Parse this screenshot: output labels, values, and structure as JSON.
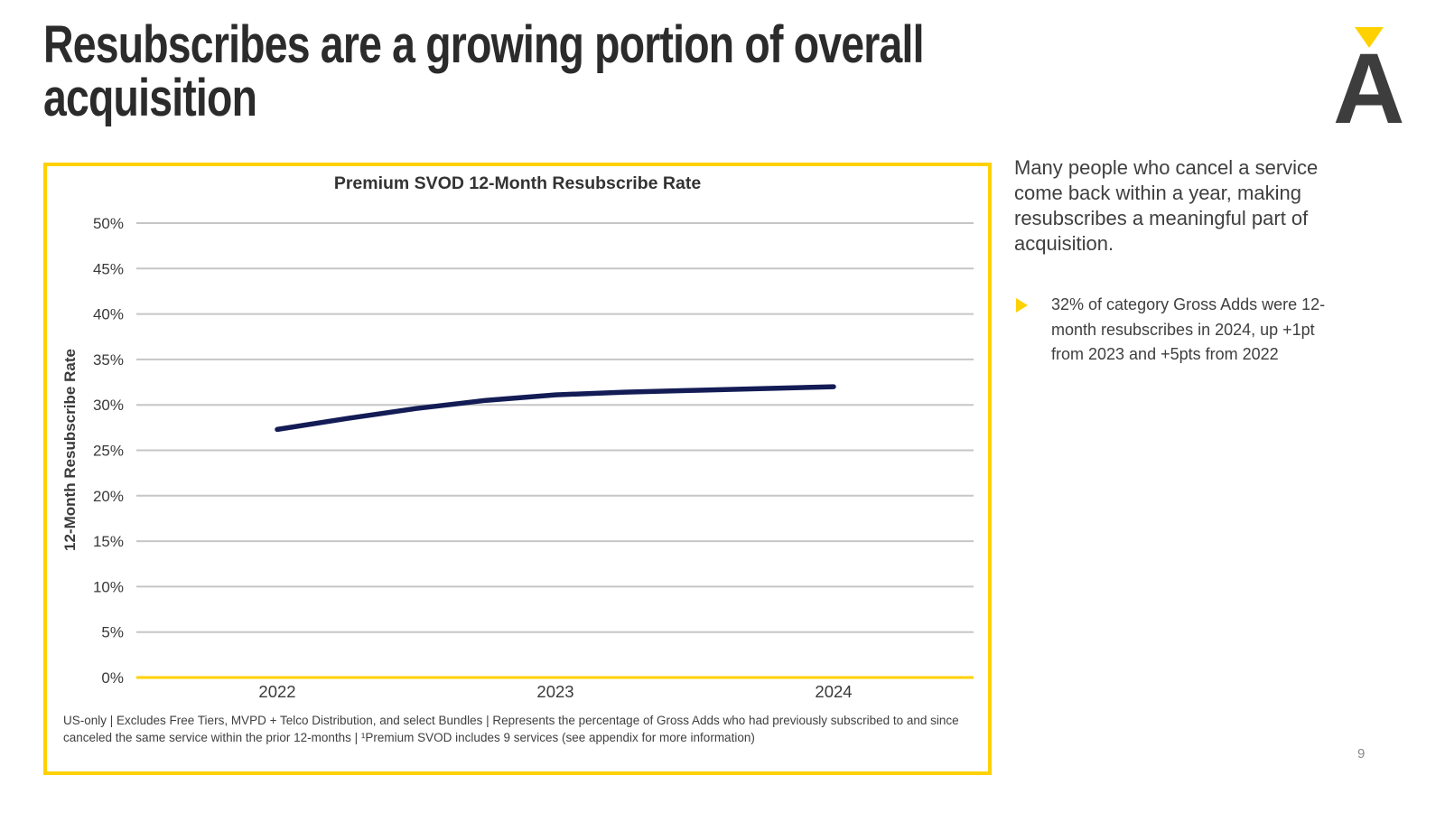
{
  "slide": {
    "title_lines": [
      "Resubscribes are a growing portion of overall",
      "acquisition"
    ],
    "page_number": "9"
  },
  "logo": {
    "letter": "A",
    "triangle_color": "#FFD100",
    "letter_color": "#3d3d3d"
  },
  "chart_data": {
    "type": "line",
    "title": "Premium SVOD 12-Month Resubscribe Rate",
    "ylabel": "12-Month Resubscribe Rate",
    "xlabel": "",
    "x_tick_labels": [
      "2022",
      "2023",
      "2024"
    ],
    "x": [
      2022,
      2022.25,
      2022.5,
      2022.75,
      2023,
      2023.25,
      2023.5,
      2023.75,
      2024
    ],
    "values": [
      27.3,
      28.5,
      29.6,
      30.5,
      31.1,
      31.4,
      31.6,
      31.8,
      32.0
    ],
    "ylim": [
      0,
      50
    ],
    "ytick_step": 5,
    "ytick_suffix": "%",
    "grid": true,
    "legend": "none",
    "line_color": "#131c55",
    "axis_color": "#FFD100",
    "gridline_color": "#c6c6c6"
  },
  "chart_footnote": "US-only | Excludes Free Tiers, MVPD + Telco Distribution, and select Bundles | Represents the percentage of Gross Adds who had previously subscribed to and since canceled the same service within the prior 12-months | ¹Premium SVOD includes 9 services (see appendix for more information)",
  "commentary": {
    "intro": "Many people who cancel a service come back within a year, making resubscribes a meaningful part of acquisition.",
    "bullets": [
      "32% of category Gross Adds were 12-month resubscribes in 2024, up +1pt from 2023 and +5pts from 2022"
    ]
  },
  "colors": {
    "accent_yellow": "#FFD100",
    "line_navy": "#131c55",
    "title_text": "#2b2b2b",
    "body_text": "#3f3f3f"
  }
}
